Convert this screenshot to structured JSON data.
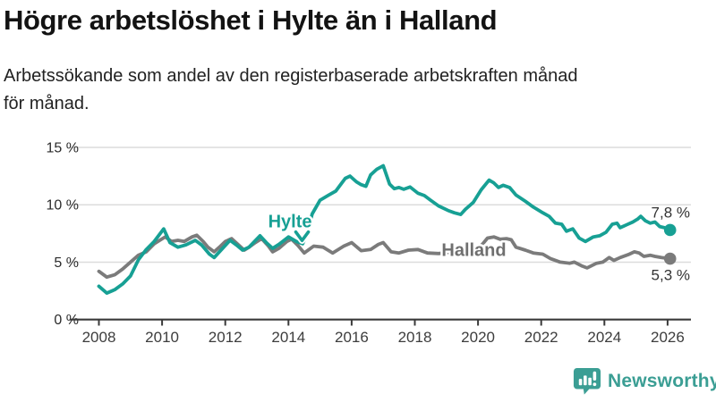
{
  "header": {
    "title": "Högre arbetslöshet i Hylte än i Halland",
    "subtitle_line1": "Arbetssökande som andel av den registerbaserade arbetskraften månad",
    "subtitle_line2": "för månad."
  },
  "colors": {
    "hylte": "#17A094",
    "halland": "#7B7B7B",
    "halland_label": "#6F6F6F",
    "grid": "#DCDCDC",
    "axis": "#3A3A3A",
    "tick_label": "#3D3D3D",
    "y_label": "#2B2B2B",
    "value_label": "#333333",
    "brand": "#3B9E94",
    "background": "#FFFFFF"
  },
  "chart_data": {
    "type": "line",
    "title": "Högre arbetslöshet i Hylte än i Halland",
    "subtitle": "Arbetssökande som andel av den registerbaserade arbetskraften månad för månad.",
    "unit": "%",
    "xlim": [
      2007.75,
      2026.75
    ],
    "ylim": [
      0,
      15
    ],
    "grid": "horizontal",
    "legend_position": "inline-labels",
    "y_ticks": [
      {
        "value": 0,
        "label": "0 %"
      },
      {
        "value": 5,
        "label": "5 %"
      },
      {
        "value": 10,
        "label": "10 %"
      },
      {
        "value": 15,
        "label": "15 %"
      }
    ],
    "x_ticks": [
      2008,
      2010,
      2012,
      2014,
      2016,
      2018,
      2020,
      2022,
      2024,
      2026
    ],
    "series": [
      {
        "name": "Halland",
        "color_key": "halland",
        "end_label": "5,3 %",
        "end_value": 5.3,
        "end_label_position": "below",
        "points": [
          [
            2008.0,
            4.2
          ],
          [
            2008.25,
            3.7
          ],
          [
            2008.5,
            3.9
          ],
          [
            2008.75,
            4.4
          ],
          [
            2009.0,
            5.0
          ],
          [
            2009.25,
            5.6
          ],
          [
            2009.5,
            5.9
          ],
          [
            2009.75,
            6.6
          ],
          [
            2010.1,
            7.2
          ],
          [
            2010.3,
            6.8
          ],
          [
            2010.5,
            6.9
          ],
          [
            2010.7,
            6.8
          ],
          [
            2010.95,
            7.2
          ],
          [
            2011.1,
            7.35
          ],
          [
            2011.3,
            6.8
          ],
          [
            2011.45,
            6.3
          ],
          [
            2011.65,
            5.9
          ],
          [
            2011.85,
            6.4
          ],
          [
            2012.0,
            6.8
          ],
          [
            2012.2,
            7.05
          ],
          [
            2012.4,
            6.55
          ],
          [
            2012.6,
            6.05
          ],
          [
            2012.75,
            6.3
          ],
          [
            2012.95,
            6.7
          ],
          [
            2013.15,
            7.05
          ],
          [
            2013.35,
            6.45
          ],
          [
            2013.5,
            5.9
          ],
          [
            2013.7,
            6.2
          ],
          [
            2013.95,
            6.8
          ],
          [
            2014.1,
            7.0
          ],
          [
            2014.3,
            6.45
          ],
          [
            2014.5,
            5.8
          ],
          [
            2014.8,
            6.4
          ],
          [
            2015.1,
            6.3
          ],
          [
            2015.4,
            5.8
          ],
          [
            2015.75,
            6.4
          ],
          [
            2016.0,
            6.7
          ],
          [
            2016.3,
            6.0
          ],
          [
            2016.6,
            6.1
          ],
          [
            2016.85,
            6.55
          ],
          [
            2017.0,
            6.7
          ],
          [
            2017.25,
            5.9
          ],
          [
            2017.5,
            5.8
          ],
          [
            2017.8,
            6.05
          ],
          [
            2018.1,
            6.1
          ],
          [
            2018.4,
            5.8
          ],
          [
            2018.75,
            5.75
          ],
          [
            2019.1,
            5.85
          ],
          [
            2019.4,
            5.6
          ],
          [
            2019.7,
            5.55
          ],
          [
            2019.9,
            5.9
          ],
          [
            2020.15,
            6.6
          ],
          [
            2020.3,
            7.1
          ],
          [
            2020.5,
            7.2
          ],
          [
            2020.7,
            7.0
          ],
          [
            2020.9,
            7.05
          ],
          [
            2021.05,
            6.95
          ],
          [
            2021.2,
            6.3
          ],
          [
            2021.5,
            6.05
          ],
          [
            2021.75,
            5.8
          ],
          [
            2022.05,
            5.7
          ],
          [
            2022.3,
            5.3
          ],
          [
            2022.6,
            5.0
          ],
          [
            2022.9,
            4.9
          ],
          [
            2023.05,
            5.0
          ],
          [
            2023.3,
            4.65
          ],
          [
            2023.45,
            4.5
          ],
          [
            2023.75,
            4.9
          ],
          [
            2023.95,
            5.0
          ],
          [
            2024.15,
            5.4
          ],
          [
            2024.3,
            5.15
          ],
          [
            2024.5,
            5.4
          ],
          [
            2024.75,
            5.65
          ],
          [
            2024.95,
            5.9
          ],
          [
            2025.1,
            5.8
          ],
          [
            2025.25,
            5.5
          ],
          [
            2025.45,
            5.6
          ],
          [
            2025.6,
            5.5
          ],
          [
            2025.8,
            5.4
          ],
          [
            2026.08,
            5.3
          ]
        ]
      },
      {
        "name": "Hylte",
        "color_key": "hylte",
        "end_label": "7,8 %",
        "end_value": 7.8,
        "end_label_position": "above",
        "points": [
          [
            2008.0,
            2.9
          ],
          [
            2008.25,
            2.3
          ],
          [
            2008.5,
            2.6
          ],
          [
            2008.75,
            3.1
          ],
          [
            2009.0,
            3.8
          ],
          [
            2009.25,
            5.2
          ],
          [
            2009.5,
            6.1
          ],
          [
            2009.75,
            6.8
          ],
          [
            2010.05,
            7.9
          ],
          [
            2010.25,
            6.7
          ],
          [
            2010.5,
            6.3
          ],
          [
            2010.75,
            6.5
          ],
          [
            2011.05,
            6.9
          ],
          [
            2011.25,
            6.5
          ],
          [
            2011.5,
            5.7
          ],
          [
            2011.65,
            5.4
          ],
          [
            2011.85,
            6.0
          ],
          [
            2012.15,
            6.9
          ],
          [
            2012.35,
            6.5
          ],
          [
            2012.55,
            6.05
          ],
          [
            2012.75,
            6.3
          ],
          [
            2013.1,
            7.3
          ],
          [
            2013.3,
            6.7
          ],
          [
            2013.5,
            6.2
          ],
          [
            2013.7,
            6.55
          ],
          [
            2014.0,
            7.2
          ],
          [
            2014.25,
            6.8
          ],
          [
            2014.45,
            6.6
          ],
          [
            2014.6,
            7.6
          ],
          [
            2014.75,
            9.2
          ],
          [
            2015.0,
            10.4
          ],
          [
            2015.25,
            10.8
          ],
          [
            2015.5,
            11.2
          ],
          [
            2015.8,
            12.3
          ],
          [
            2015.95,
            12.5
          ],
          [
            2016.15,
            12.0
          ],
          [
            2016.3,
            11.75
          ],
          [
            2016.45,
            11.6
          ],
          [
            2016.6,
            12.6
          ],
          [
            2016.8,
            13.1
          ],
          [
            2017.0,
            13.4
          ],
          [
            2017.2,
            11.8
          ],
          [
            2017.35,
            11.4
          ],
          [
            2017.5,
            11.5
          ],
          [
            2017.65,
            11.35
          ],
          [
            2017.85,
            11.55
          ],
          [
            2018.1,
            11.0
          ],
          [
            2018.3,
            10.8
          ],
          [
            2018.5,
            10.4
          ],
          [
            2018.75,
            9.9
          ],
          [
            2019.05,
            9.5
          ],
          [
            2019.25,
            9.3
          ],
          [
            2019.45,
            9.15
          ],
          [
            2019.6,
            9.6
          ],
          [
            2019.85,
            10.2
          ],
          [
            2020.1,
            11.3
          ],
          [
            2020.35,
            12.15
          ],
          [
            2020.5,
            11.9
          ],
          [
            2020.65,
            11.5
          ],
          [
            2020.8,
            11.7
          ],
          [
            2021.0,
            11.5
          ],
          [
            2021.2,
            10.85
          ],
          [
            2021.5,
            10.3
          ],
          [
            2021.75,
            9.8
          ],
          [
            2022.05,
            9.3
          ],
          [
            2022.25,
            9.0
          ],
          [
            2022.45,
            8.4
          ],
          [
            2022.65,
            8.3
          ],
          [
            2022.8,
            7.7
          ],
          [
            2023.0,
            7.9
          ],
          [
            2023.2,
            7.1
          ],
          [
            2023.4,
            6.8
          ],
          [
            2023.65,
            7.2
          ],
          [
            2023.85,
            7.3
          ],
          [
            2024.05,
            7.6
          ],
          [
            2024.25,
            8.3
          ],
          [
            2024.4,
            8.4
          ],
          [
            2024.5,
            8.0
          ],
          [
            2024.7,
            8.25
          ],
          [
            2024.9,
            8.5
          ],
          [
            2025.05,
            8.75
          ],
          [
            2025.15,
            9.0
          ],
          [
            2025.3,
            8.6
          ],
          [
            2025.45,
            8.4
          ],
          [
            2025.6,
            8.5
          ],
          [
            2025.75,
            8.1
          ],
          [
            2025.9,
            8.0
          ],
          [
            2026.08,
            7.8
          ]
        ]
      }
    ],
    "annotations": {
      "hylte_label": {
        "text": "Hylte",
        "x": 2014.05,
        "y": 8.05,
        "arrow": {
          "x": 2014.43,
          "y": 7.2
        }
      },
      "halland_label": {
        "text": "Halland",
        "x": 2019.87,
        "y": 5.55
      }
    }
  },
  "footer": {
    "brand": "Newsworthy",
    "icon": "newsworthy-logo-icon"
  }
}
